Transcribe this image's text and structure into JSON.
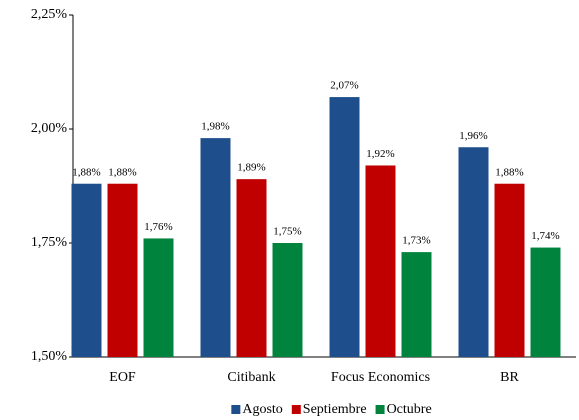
{
  "chart_data": {
    "type": "bar",
    "categories": [
      "EOF",
      "Citibank",
      "Focus Economics",
      "BR"
    ],
    "series": [
      {
        "name": "Agosto",
        "color": "#1f4e8c",
        "values": [
          1.88,
          1.98,
          2.07,
          1.96
        ],
        "value_labels": [
          "1,88%",
          "1,98%",
          "2,07%",
          "1,96%"
        ]
      },
      {
        "name": "Septiembre",
        "color": "#c00000",
        "values": [
          1.88,
          1.89,
          1.92,
          1.88
        ],
        "value_labels": [
          "1,88%",
          "1,89%",
          "1,92%",
          "1,88%"
        ]
      },
      {
        "name": "Octubre",
        "color": "#00843d",
        "values": [
          1.76,
          1.75,
          1.73,
          1.74
        ],
        "value_labels": [
          "1,76%",
          "1,75%",
          "1,73%",
          "1,74%"
        ]
      }
    ],
    "ylim": [
      1.5,
      2.25
    ],
    "yticks": [
      {
        "value": 1.5,
        "label": "1,50%"
      },
      {
        "value": 1.75,
        "label": "1,75%"
      },
      {
        "value": 2.0,
        "label": "2,00%"
      },
      {
        "value": 2.25,
        "label": "2,25%"
      }
    ],
    "legend": "bottom"
  }
}
